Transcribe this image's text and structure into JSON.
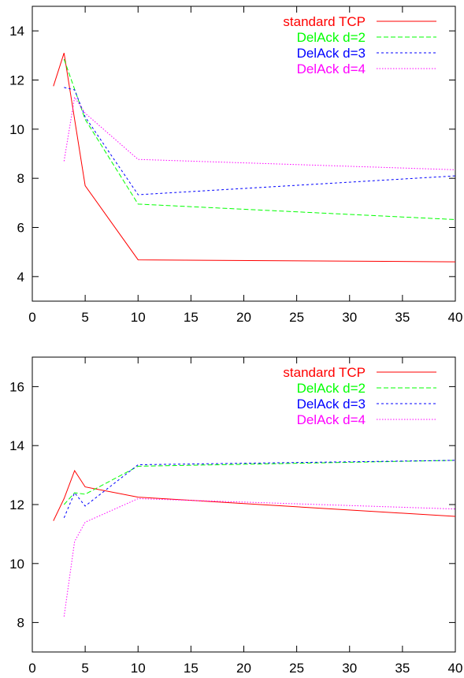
{
  "chart_data": [
    {
      "type": "line",
      "xlim": [
        0,
        40
      ],
      "ylim": [
        3,
        15
      ],
      "xticks": [
        0,
        5,
        10,
        15,
        20,
        25,
        30,
        35,
        40
      ],
      "yticks": [
        4,
        6,
        8,
        10,
        12,
        14
      ],
      "grid": false,
      "legend_position": "top-right",
      "series": [
        {
          "name": "standard TCP",
          "color": "#ff0000",
          "dash": "solid",
          "x": [
            2,
            3,
            5,
            10,
            40
          ],
          "y": [
            11.75,
            13.1,
            7.7,
            4.68,
            4.6
          ]
        },
        {
          "name": "DelAck d=2",
          "color": "#00ff00",
          "dash": "dashed",
          "x": [
            3,
            5,
            10,
            40
          ],
          "y": [
            12.85,
            10.4,
            6.95,
            6.32
          ]
        },
        {
          "name": "DelAck d=3",
          "color": "#0000ff",
          "dash": "dotted",
          "x": [
            3,
            4,
            5,
            10,
            40
          ],
          "y": [
            11.7,
            11.6,
            10.5,
            7.33,
            8.1
          ]
        },
        {
          "name": "DelAck d=4",
          "color": "#ff00ff",
          "dash": "finedotted",
          "x": [
            3,
            4,
            5,
            10,
            40
          ],
          "y": [
            8.7,
            11.3,
            10.65,
            8.77,
            8.35
          ]
        }
      ]
    },
    {
      "type": "line",
      "xlim": [
        0,
        40
      ],
      "ylim": [
        7,
        17
      ],
      "xticks": [
        0,
        5,
        10,
        15,
        20,
        25,
        30,
        35,
        40
      ],
      "yticks": [
        8,
        10,
        12,
        14,
        16
      ],
      "grid": false,
      "legend_position": "top-right",
      "series": [
        {
          "name": "standard TCP",
          "color": "#ff0000",
          "dash": "solid",
          "x": [
            2,
            3,
            4,
            5,
            10,
            40
          ],
          "y": [
            11.45,
            12.2,
            13.15,
            12.6,
            12.25,
            11.6
          ]
        },
        {
          "name": "DelAck d=2",
          "color": "#00ff00",
          "dash": "dashed",
          "x": [
            3,
            4,
            5,
            10,
            40
          ],
          "y": [
            12.0,
            12.4,
            12.35,
            13.3,
            13.5
          ]
        },
        {
          "name": "DelAck d=3",
          "color": "#0000ff",
          "dash": "dotted",
          "x": [
            3,
            4,
            5,
            10,
            40
          ],
          "y": [
            11.55,
            12.4,
            11.95,
            13.35,
            13.5
          ]
        },
        {
          "name": "DelAck d=4",
          "color": "#ff00ff",
          "dash": "finedotted",
          "x": [
            3,
            4,
            5,
            10,
            40
          ],
          "y": [
            8.2,
            10.75,
            11.4,
            12.2,
            11.85
          ]
        }
      ]
    }
  ]
}
